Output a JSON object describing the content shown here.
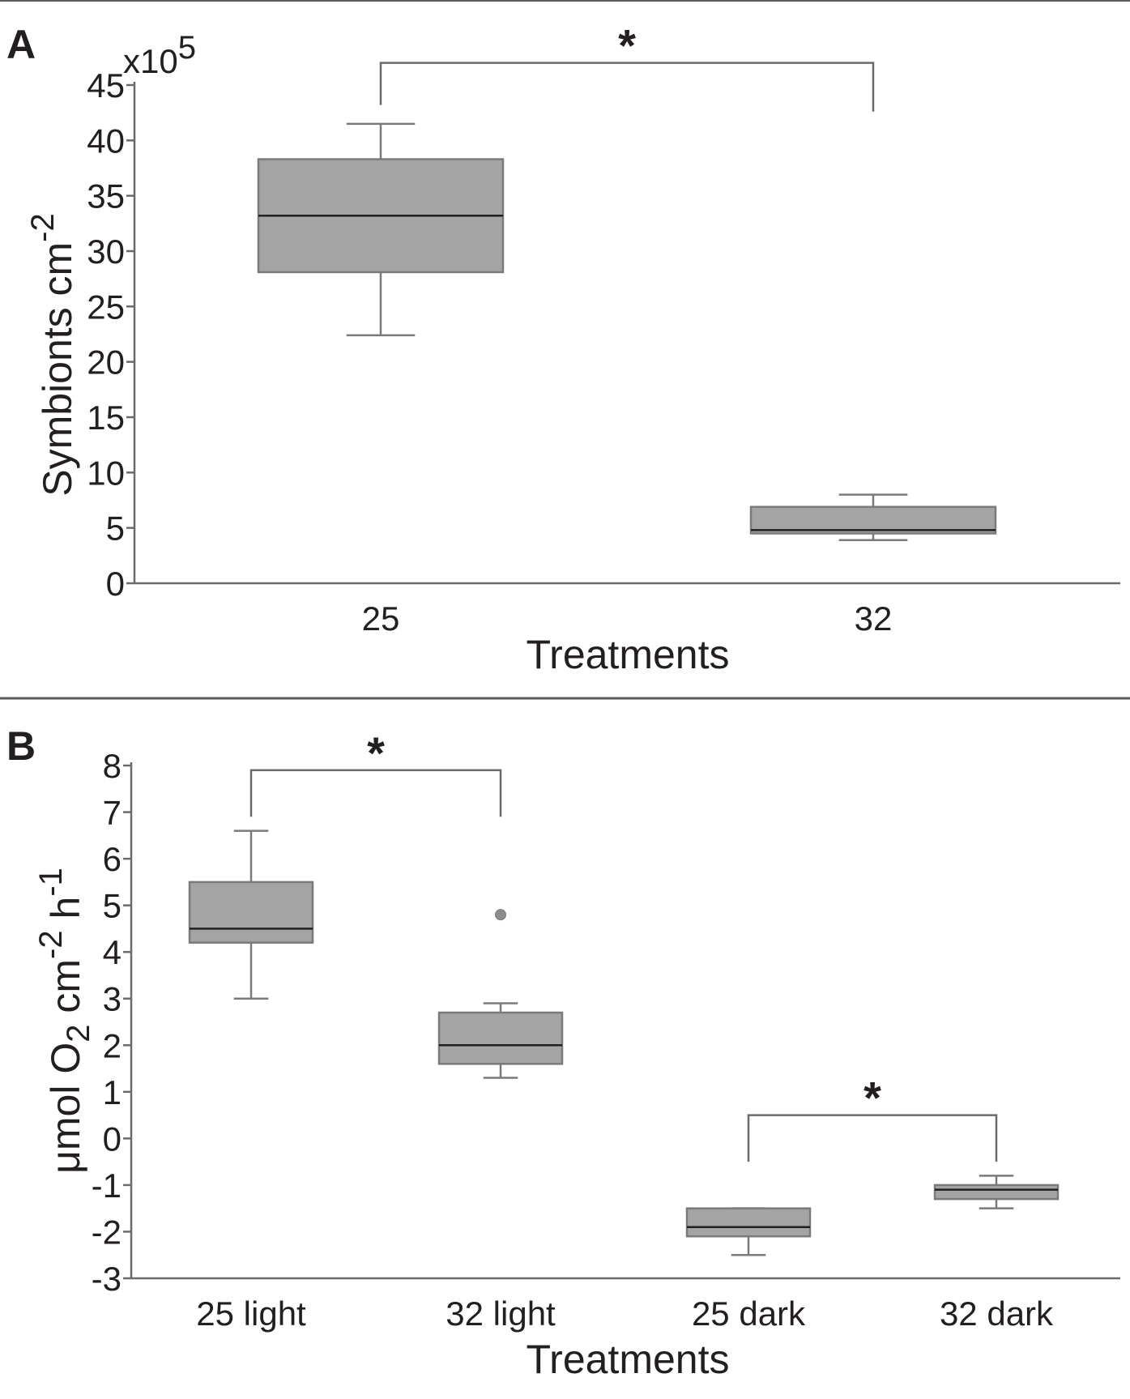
{
  "colors": {
    "box_fill": "#a4a4a4",
    "box_stroke": "#7a7a7a",
    "median": "#231f20",
    "axis": "#6b6b6b",
    "text": "#231f20",
    "divider": "#5a5a5a"
  },
  "chart_data": [
    {
      "panel_label": "A",
      "type": "box",
      "title": "",
      "xlabel": "Treatments",
      "ylabel_main": "Symbionts cm",
      "ylabel_superscript": "-2",
      "y_multiplier_base": "x10",
      "y_multiplier_exponent": "5",
      "categories": [
        "25",
        "32"
      ],
      "ylim": [
        0,
        45
      ],
      "yticks": [
        0,
        5,
        10,
        15,
        20,
        25,
        30,
        35,
        40,
        45
      ],
      "ytick_labels": [
        "0",
        "5",
        "10",
        "15",
        "20",
        "25",
        "30",
        "35",
        "40",
        "45"
      ],
      "grid": false,
      "boxes": [
        {
          "category": "25",
          "whisker_low": 22.4,
          "q1": 28.1,
          "median": 33.2,
          "q3": 38.3,
          "whisker_high": 41.5,
          "outliers": []
        },
        {
          "category": "32",
          "whisker_low": 3.9,
          "q1": 4.5,
          "median": 4.8,
          "q3": 6.9,
          "whisker_high": 8.0,
          "outliers": []
        }
      ],
      "significance": [
        {
          "from": "25",
          "to": "32",
          "label": "*",
          "y": 47,
          "drop_to": 42.6,
          "left_drop_to": 43.2
        }
      ]
    },
    {
      "panel_label": "B",
      "type": "box",
      "title": "",
      "xlabel": "Treatments",
      "ylabel_parts": {
        "prefix": "μmol O",
        "o2_subscript": "2",
        "cm": " cm",
        "cm_superscript": "-2",
        "h": " h",
        "h_superscript": "-1"
      },
      "categories": [
        "25 light",
        "32 light",
        "25 dark",
        "32 dark"
      ],
      "ylim": [
        -3,
        8
      ],
      "yticks": [
        -3,
        -2,
        -1,
        0,
        1,
        2,
        3,
        4,
        5,
        6,
        7,
        8
      ],
      "ytick_labels": [
        "-3",
        "-2",
        "-1",
        "0",
        "1",
        "2",
        "3",
        "4",
        "5",
        "6",
        "7",
        "8"
      ],
      "grid": false,
      "boxes": [
        {
          "category": "25 light",
          "whisker_low": 3.0,
          "q1": 4.2,
          "median": 4.5,
          "q3": 5.5,
          "whisker_high": 6.6,
          "outliers": []
        },
        {
          "category": "32 light",
          "whisker_low": 1.3,
          "q1": 1.6,
          "median": 2.0,
          "q3": 2.7,
          "whisker_high": 2.9,
          "outliers": [
            4.8
          ]
        },
        {
          "category": "25 dark",
          "whisker_low": -2.5,
          "q1": -2.1,
          "median": -1.9,
          "q3": -1.5,
          "whisker_high": -1.5,
          "outliers": []
        },
        {
          "category": "32 dark",
          "whisker_low": -1.5,
          "q1": -1.3,
          "median": -1.1,
          "q3": -1.0,
          "whisker_high": -0.8,
          "outliers": []
        }
      ],
      "significance": [
        {
          "from": "25 light",
          "to": "32 light",
          "label": "*",
          "y": 7.9,
          "drop_to": 6.9
        },
        {
          "from": "25 dark",
          "to": "32 dark",
          "label": "*",
          "y": 0.5,
          "drop_to": -0.5
        }
      ]
    }
  ]
}
